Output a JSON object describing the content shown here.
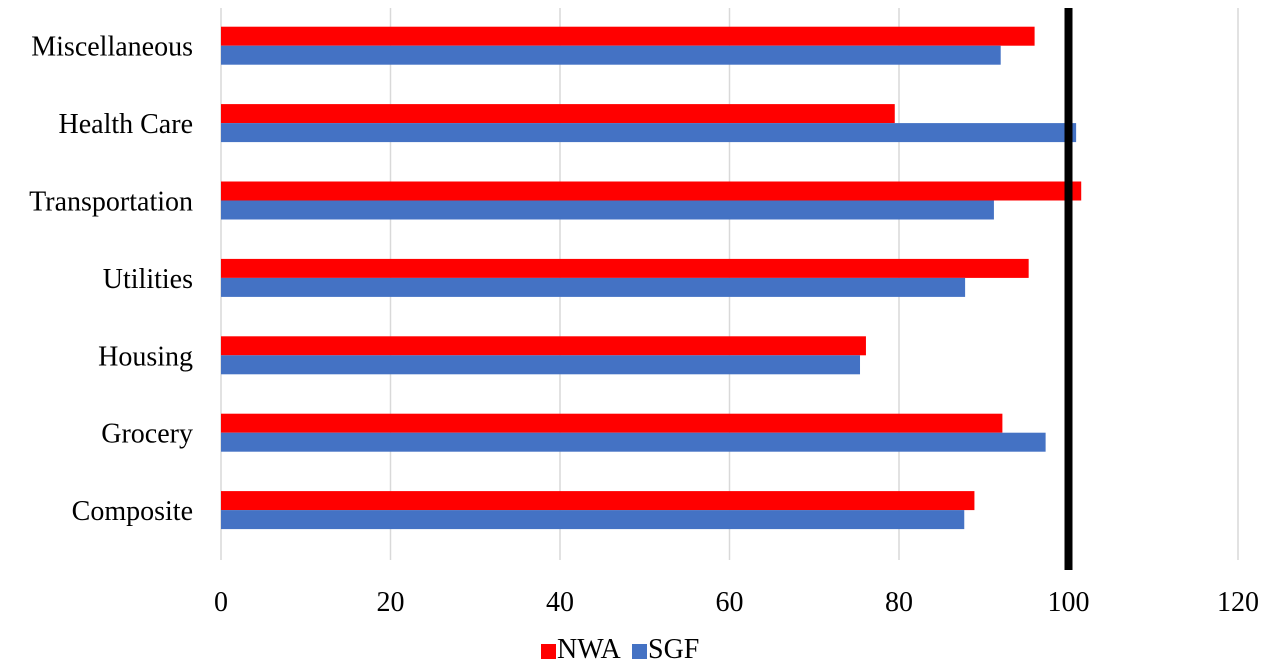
{
  "chart_data": {
    "type": "bar",
    "orientation": "horizontal",
    "categories": [
      "Miscellaneous",
      "Health Care",
      "Transportation",
      "Utilities",
      "Housing",
      "Grocery",
      "Composite"
    ],
    "series": [
      {
        "name": "NWA",
        "color": "#ff0000",
        "values": [
          96.0,
          79.5,
          101.5,
          95.3,
          76.1,
          92.2,
          88.9
        ]
      },
      {
        "name": "SGF",
        "color": "#4472c4",
        "values": [
          92.0,
          100.9,
          91.2,
          87.8,
          75.4,
          97.3,
          87.7
        ]
      }
    ],
    "xlim": [
      0,
      120
    ],
    "x_ticks": [
      "0",
      "20",
      "40",
      "60",
      "80",
      "100",
      "120"
    ],
    "reference_line": {
      "value": 100,
      "color": "#000000"
    },
    "grid": "vertical",
    "legend": {
      "position": "bottom",
      "entries": [
        "NWA",
        "SGF"
      ]
    }
  }
}
